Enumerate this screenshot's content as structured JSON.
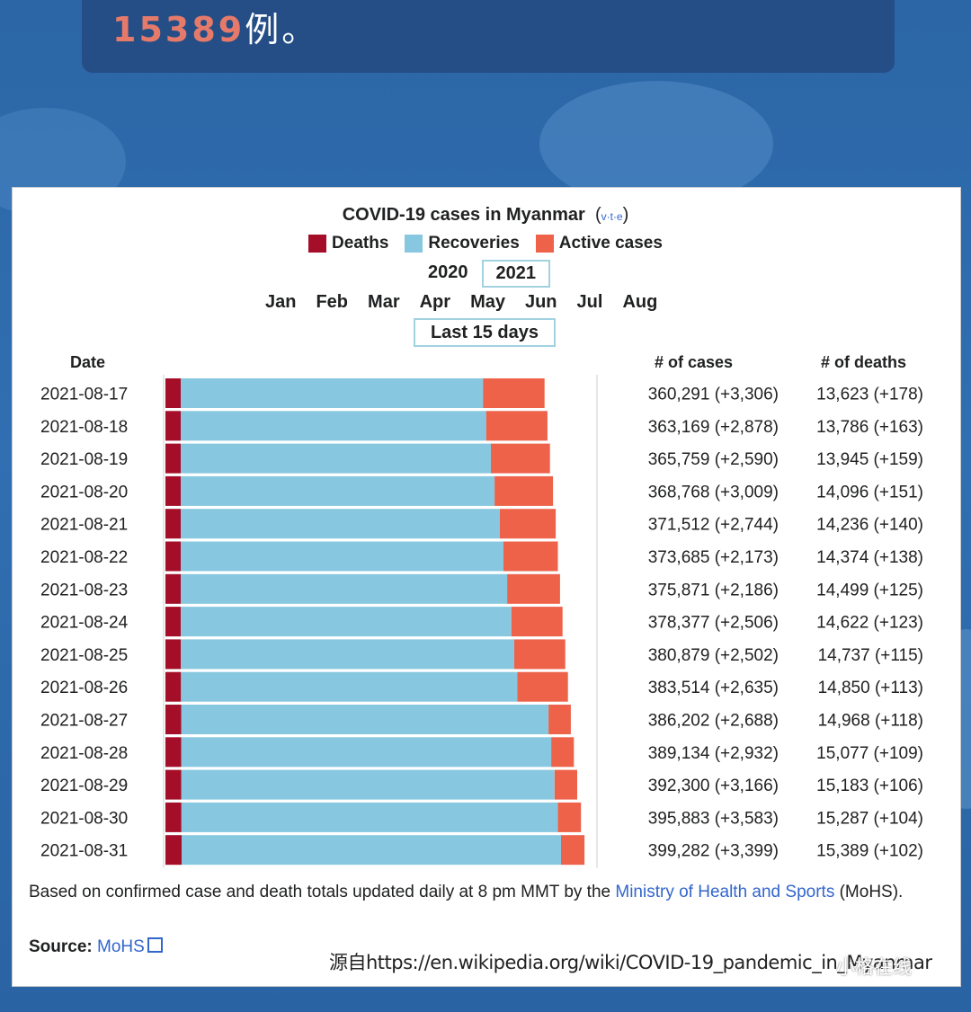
{
  "headline": {
    "number": "15389",
    "suffix": "例。"
  },
  "chart_data": {
    "type": "bar",
    "stacked": true,
    "orientation": "horizontal",
    "title": "COVID-19 cases in Myanmar",
    "vte": "v·t·e",
    "legend": [
      {
        "name": "Deaths",
        "color": "#a50e28"
      },
      {
        "name": "Recoveries",
        "color": "#87c8e0"
      },
      {
        "name": "Active cases",
        "color": "#ed6249"
      }
    ],
    "years": [
      "2020",
      "2021"
    ],
    "selected_year": "2021",
    "months": [
      "Jan",
      "Feb",
      "Mar",
      "Apr",
      "May",
      "Jun",
      "Jul",
      "Aug"
    ],
    "period": "Last 15 days",
    "col_date": "Date",
    "col_cases": "# of cases",
    "col_deaths": "# of deaths",
    "rows": [
      {
        "date": "2021-08-17",
        "total": 360291,
        "cases_label": "360,291 (+3,306)",
        "deaths": 13623,
        "deaths_label": "13,623 (+178)",
        "recoveries": 288000
      },
      {
        "date": "2021-08-18",
        "total": 363169,
        "cases_label": "363,169 (+2,878)",
        "deaths": 13786,
        "deaths_label": "13,786 (+163)",
        "recoveries": 291000
      },
      {
        "date": "2021-08-19",
        "total": 365759,
        "cases_label": "365,759 (+2,590)",
        "deaths": 13945,
        "deaths_label": "13,945 (+159)",
        "recoveries": 295500
      },
      {
        "date": "2021-08-20",
        "total": 368768,
        "cases_label": "368,768 (+3,009)",
        "deaths": 14096,
        "deaths_label": "14,096 (+151)",
        "recoveries": 299000
      },
      {
        "date": "2021-08-21",
        "total": 371512,
        "cases_label": "371,512 (+2,744)",
        "deaths": 14236,
        "deaths_label": "14,236 (+140)",
        "recoveries": 304000
      },
      {
        "date": "2021-08-22",
        "total": 373685,
        "cases_label": "373,685 (+2,173)",
        "deaths": 14374,
        "deaths_label": "14,374 (+138)",
        "recoveries": 307500
      },
      {
        "date": "2021-08-23",
        "total": 375871,
        "cases_label": "375,871 (+2,186)",
        "deaths": 14499,
        "deaths_label": "14,499 (+125)",
        "recoveries": 311000
      },
      {
        "date": "2021-08-24",
        "total": 378377,
        "cases_label": "378,377 (+2,506)",
        "deaths": 14622,
        "deaths_label": "14,622 (+123)",
        "recoveries": 315000
      },
      {
        "date": "2021-08-25",
        "total": 380879,
        "cases_label": "380,879 (+2,502)",
        "deaths": 14737,
        "deaths_label": "14,737 (+115)",
        "recoveries": 317500
      },
      {
        "date": "2021-08-26",
        "total": 383514,
        "cases_label": "383,514 (+2,635)",
        "deaths": 14850,
        "deaths_label": "14,850 (+113)",
        "recoveries": 320500
      },
      {
        "date": "2021-08-27",
        "total": 386202,
        "cases_label": "386,202 (+2,688)",
        "deaths": 14968,
        "deaths_label": "14,968 (+118)",
        "recoveries": 350000
      },
      {
        "date": "2021-08-28",
        "total": 389134,
        "cases_label": "389,134 (+2,932)",
        "deaths": 15077,
        "deaths_label": "15,077 (+109)",
        "recoveries": 352500
      },
      {
        "date": "2021-08-29",
        "total": 392300,
        "cases_label": "392,300 (+3,166)",
        "deaths": 15183,
        "deaths_label": "15,183 (+106)",
        "recoveries": 355500
      },
      {
        "date": "2021-08-30",
        "total": 395883,
        "cases_label": "395,883 (+3,583)",
        "deaths": 15287,
        "deaths_label": "15,287 (+104)",
        "recoveries": 358500
      },
      {
        "date": "2021-08-31",
        "total": 399282,
        "cases_label": "399,282 (+3,399)",
        "deaths": 15389,
        "deaths_label": "15,389 (+102)",
        "recoveries": 361500
      }
    ],
    "xlim": [
      0,
      430000
    ]
  },
  "footnote": {
    "text": "Based on confirmed case and death totals updated daily at 8 pm MMT by the ",
    "link": "Ministry of Health and Sports",
    "tail": " (MoHS)."
  },
  "source": {
    "label": "Source:",
    "link": "MoHS"
  },
  "watermark": "源自https://en.wikipedia.org/wiki/COVID-19_pandemic_in_Myanmar",
  "wechat": "小格在线"
}
